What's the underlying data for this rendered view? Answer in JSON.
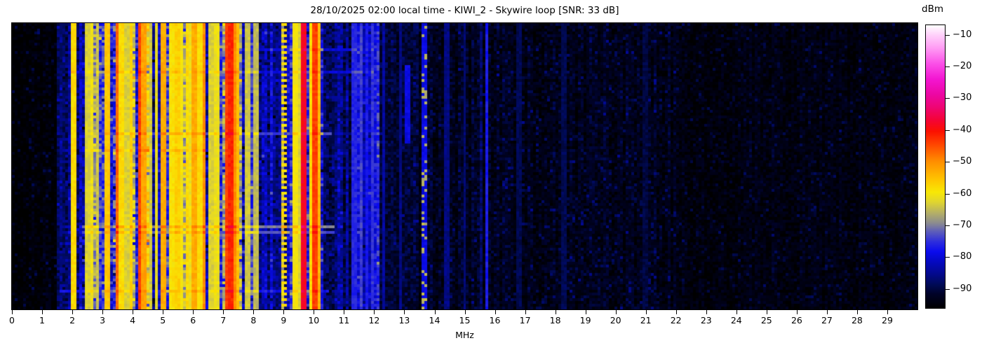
{
  "chart_data": {
    "type": "heatmap",
    "subtype": "hf-radio-spectrogram-waterfall",
    "title": "28/10/2025 02:00 local time - KIWI_2 - Skywire loop [SNR: 33 dB]",
    "datetime_local": "28/10/2025 02:00",
    "receiver": "KIWI_2",
    "antenna": "Skywire loop",
    "snr_db": 33,
    "xlabel": "MHz",
    "x_range_mhz": [
      0,
      30
    ],
    "x_ticks": [
      0,
      1,
      2,
      3,
      4,
      5,
      6,
      7,
      8,
      9,
      10,
      11,
      12,
      13,
      14,
      15,
      16,
      17,
      18,
      19,
      20,
      21,
      22,
      23,
      24,
      25,
      26,
      27,
      28,
      29
    ],
    "grid": false,
    "legend": "none",
    "colorbar": {
      "label": "dBm",
      "vmin": -96,
      "vmax": -7,
      "ticks": [
        {
          "v": -10,
          "label": "−10"
        },
        {
          "v": -20,
          "label": "−20"
        },
        {
          "v": -30,
          "label": "−30"
        },
        {
          "v": -40,
          "label": "−40"
        },
        {
          "v": -50,
          "label": "−50"
        },
        {
          "v": -60,
          "label": "−60"
        },
        {
          "v": -70,
          "label": "−70"
        },
        {
          "v": -80,
          "label": "−80"
        },
        {
          "v": -90,
          "label": "−90"
        }
      ]
    },
    "colormap_stops": [
      [
        0.0,
        "#000000"
      ],
      [
        0.05,
        "#000228"
      ],
      [
        0.08,
        "#000a52"
      ],
      [
        0.12,
        "#03098c"
      ],
      [
        0.17,
        "#0509c8"
      ],
      [
        0.2,
        "#0b0bee"
      ],
      [
        0.235,
        "#2e2edc"
      ],
      [
        0.27,
        "#5d5dba"
      ],
      [
        0.3,
        "#8b8b90"
      ],
      [
        0.335,
        "#b3ae68"
      ],
      [
        0.375,
        "#e0d52f"
      ],
      [
        0.41,
        "#f8e805"
      ],
      [
        0.455,
        "#ffc400"
      ],
      [
        0.52,
        "#ff8c00"
      ],
      [
        0.58,
        "#ff4400"
      ],
      [
        0.625,
        "#fb1000"
      ],
      [
        0.665,
        "#f40336"
      ],
      [
        0.71,
        "#ee0573"
      ],
      [
        0.755,
        "#ec07a3"
      ],
      [
        0.81,
        "#f316d2"
      ],
      [
        0.865,
        "#fb51e8"
      ],
      [
        0.92,
        "#ff9cf4"
      ],
      [
        0.965,
        "#ffd0fa"
      ],
      [
        1.0,
        "#ffffff"
      ]
    ],
    "render": {
      "seed": 1337,
      "cols": 323,
      "rows": 102
    },
    "bands_format": [
      "f0_mhz",
      "f1_mhz",
      "base_dbm",
      "col_var",
      "noise",
      "stripe_prob",
      "stripe_boost",
      "spark_prob",
      "spark_amp",
      "drop_prob",
      "drop_amp"
    ],
    "bands": [
      [
        0.0,
        1.45,
        -95.5,
        1.0,
        2.0,
        0.0,
        0,
        0.15,
        6,
        0.0,
        0
      ],
      [
        1.45,
        1.78,
        -90.0,
        3.0,
        3.0,
        0.3,
        5,
        0.15,
        6,
        0.05,
        5
      ],
      [
        1.78,
        2.05,
        -86.0,
        4.0,
        4.0,
        0.3,
        7,
        0.15,
        6,
        0.06,
        6
      ],
      [
        2.05,
        2.35,
        -85.0,
        4.0,
        4.0,
        0.3,
        7,
        0.12,
        6,
        0.06,
        6
      ],
      [
        2.35,
        3.05,
        -81.0,
        6.0,
        5.0,
        0.38,
        13,
        0.12,
        7,
        0.1,
        10
      ],
      [
        3.05,
        4.55,
        -78.0,
        7.0,
        6.0,
        0.45,
        15,
        0.12,
        8,
        0.12,
        12
      ],
      [
        4.55,
        5.15,
        -80.0,
        6.0,
        5.0,
        0.35,
        12,
        0.12,
        7,
        0.1,
        10
      ],
      [
        5.15,
        6.45,
        -75.0,
        7.0,
        6.0,
        0.5,
        13,
        0.12,
        8,
        0.12,
        12
      ],
      [
        6.45,
        7.05,
        -79.0,
        6.0,
        5.0,
        0.35,
        11,
        0.12,
        7,
        0.1,
        10
      ],
      [
        7.05,
        7.65,
        -72.0,
        8.0,
        6.0,
        0.5,
        14,
        0.12,
        8,
        0.12,
        14
      ],
      [
        7.65,
        8.2,
        -80.0,
        6.0,
        5.0,
        0.3,
        10,
        0.1,
        7,
        0.1,
        10
      ],
      [
        8.2,
        8.9,
        -84.0,
        5.0,
        4.0,
        0.22,
        8,
        0.1,
        6,
        0.08,
        8
      ],
      [
        8.9,
        10.3,
        -82.0,
        6.0,
        5.0,
        0.35,
        13,
        0.1,
        7,
        0.1,
        10
      ],
      [
        10.3,
        11.2,
        -87.0,
        4.0,
        4.0,
        0.25,
        6,
        0.1,
        5,
        0.05,
        5
      ],
      [
        11.2,
        12.15,
        -85.0,
        4.0,
        4.0,
        0.35,
        7,
        0.1,
        5,
        0.05,
        5
      ],
      [
        12.15,
        13.4,
        -92.0,
        2.0,
        3.0,
        0.12,
        4,
        0.12,
        5,
        0.0,
        0
      ],
      [
        13.4,
        16.1,
        -92.5,
        2.0,
        3.0,
        0.08,
        4,
        0.12,
        5,
        0.0,
        0
      ],
      [
        16.1,
        22.0,
        -93.5,
        1.5,
        2.5,
        0.0,
        0,
        0.22,
        6,
        0.0,
        0
      ],
      [
        22.0,
        30.0,
        -94.5,
        1.0,
        2.0,
        0.0,
        0,
        0.18,
        5,
        0.0,
        0
      ]
    ],
    "lines_format": [
      "f_mhz",
      "level_dbm",
      "width_px",
      "style",
      "row_frac_from",
      "row_frac_to"
    ],
    "lines": [
      [
        2.02,
        -58,
        3,
        "solid"
      ],
      [
        2.5,
        -63,
        2,
        "solid"
      ],
      [
        2.63,
        -61,
        2,
        "solid"
      ],
      [
        2.82,
        -64,
        2,
        "solid"
      ],
      [
        3.18,
        -56,
        2,
        "solid"
      ],
      [
        3.48,
        -47,
        2,
        "solid"
      ],
      [
        3.62,
        -58,
        2,
        "solid"
      ],
      [
        3.8,
        -63,
        2,
        "solid"
      ],
      [
        3.95,
        -57,
        2,
        "solid"
      ],
      [
        4.22,
        -44,
        3,
        "solid"
      ],
      [
        4.35,
        -52,
        2,
        "solid"
      ],
      [
        4.6,
        -64,
        2,
        "solid"
      ],
      [
        4.8,
        -62,
        2,
        "solid"
      ],
      [
        5.0,
        -53,
        2,
        "solid"
      ],
      [
        5.3,
        -59,
        2,
        "solid"
      ],
      [
        5.47,
        -57,
        2,
        "solid"
      ],
      [
        5.62,
        -60,
        2,
        "solid"
      ],
      [
        5.8,
        -58,
        2,
        "solid"
      ],
      [
        5.95,
        -61,
        2,
        "solid"
      ],
      [
        6.07,
        -53,
        3,
        "solid"
      ],
      [
        6.2,
        -58,
        2,
        "solid"
      ],
      [
        6.38,
        -50,
        2,
        "solid"
      ],
      [
        6.6,
        -63,
        2,
        "solid"
      ],
      [
        6.8,
        -61,
        2,
        "solid"
      ],
      [
        7.15,
        -44,
        3,
        "solid"
      ],
      [
        7.26,
        -42,
        3,
        "solid"
      ],
      [
        7.38,
        -50,
        2,
        "solid"
      ],
      [
        7.5,
        -55,
        2,
        "solid"
      ],
      [
        7.8,
        -64,
        2,
        "solid"
      ],
      [
        8.1,
        -65,
        2,
        "solid"
      ],
      [
        9.0,
        -58,
        3,
        "dashed"
      ],
      [
        9.4,
        -60,
        2,
        "solid"
      ],
      [
        9.55,
        -63,
        2,
        "solid"
      ],
      [
        9.67,
        -38,
        4,
        "solid"
      ],
      [
        9.9,
        -58,
        2,
        "solid"
      ],
      [
        10.05,
        -44,
        3,
        "solid"
      ],
      [
        10.17,
        -54,
        2,
        "solid"
      ],
      [
        11.35,
        -76,
        2,
        "solid"
      ],
      [
        11.55,
        -74,
        2,
        "solid"
      ],
      [
        11.75,
        -77,
        2,
        "solid"
      ],
      [
        11.95,
        -75,
        2,
        "solid"
      ],
      [
        12.3,
        -84,
        2,
        "solid"
      ],
      [
        12.85,
        -86,
        2,
        "solid"
      ],
      [
        13.1,
        -79,
        2,
        "segment",
        0.14,
        0.42
      ],
      [
        13.68,
        -66,
        3,
        "speckle"
      ],
      [
        14.4,
        -86,
        2,
        "solid"
      ],
      [
        15.0,
        -87,
        2,
        "solid"
      ],
      [
        15.75,
        -77,
        3,
        "solid"
      ],
      [
        16.8,
        -89,
        2,
        "solid"
      ],
      [
        18.3,
        -89,
        2,
        "solid"
      ],
      [
        21.0,
        -90,
        2,
        "solid"
      ]
    ],
    "h_streaks_format": [
      "row_frac",
      "f0_mhz",
      "f1_mhz",
      "add_db",
      "floor_dbm"
    ],
    "h_streaks": [
      [
        0.09,
        8.4,
        12.1,
        3,
        -80
      ],
      [
        0.165,
        1.9,
        12.0,
        3,
        -80
      ],
      [
        0.38,
        2.9,
        10.6,
        4,
        -74
      ],
      [
        0.445,
        2.3,
        6.5,
        3,
        -78
      ],
      [
        0.705,
        2.3,
        10.7,
        5,
        -70
      ],
      [
        0.728,
        2.3,
        10.7,
        4,
        -73
      ],
      [
        0.935,
        1.6,
        10.5,
        3,
        -78
      ]
    ]
  }
}
